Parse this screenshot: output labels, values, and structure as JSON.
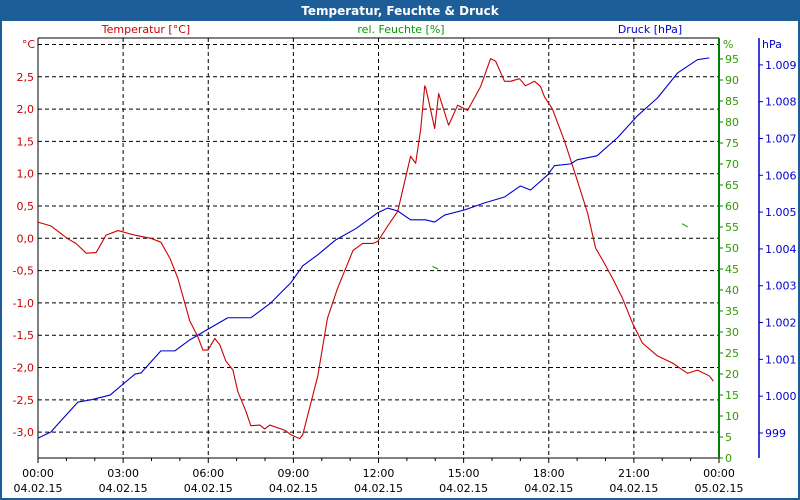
{
  "window": {
    "title": "Temperatur, Feuchte & Druck"
  },
  "colors": {
    "temperature": "#cc0000",
    "humidity": "#009900",
    "humidity_axis": "#008000",
    "pressure": "#0000cc",
    "titlebar": "#1d5e98"
  },
  "chart_data": {
    "type": "line",
    "title": "Temperatur, Feuchte & Druck",
    "xlabel": "",
    "x_unit": "hours since 00:00 04.02.15",
    "xlim": [
      0,
      24
    ],
    "x_ticks": [
      {
        "value": 0,
        "time": "00:00",
        "date": "04.02.15"
      },
      {
        "value": 3,
        "time": "03:00",
        "date": "04.02.15"
      },
      {
        "value": 6,
        "time": "06:00",
        "date": "04.02.15"
      },
      {
        "value": 9,
        "time": "09:00",
        "date": "04.02.15"
      },
      {
        "value": 12,
        "time": "12:00",
        "date": "04.02.15"
      },
      {
        "value": 15,
        "time": "15:00",
        "date": "04.02.15"
      },
      {
        "value": 18,
        "time": "18:00",
        "date": "04.02.15"
      },
      {
        "value": 21,
        "time": "21:00",
        "date": "04.02.15"
      },
      {
        "value": 24,
        "time": "00:00",
        "date": "05.02.15"
      }
    ],
    "grid": true,
    "axes": {
      "temperature": {
        "label": "Temperatur [°C]",
        "unit": "°C",
        "ylim": [
          -3.4,
          3.1
        ],
        "ticks": [
          {
            "v": 2.5,
            "t": "2,5"
          },
          {
            "v": 2,
            "t": "2,0"
          },
          {
            "v": 1.5,
            "t": "1,5"
          },
          {
            "v": 1,
            "t": "1,0"
          },
          {
            "v": 0.5,
            "t": "0,5"
          },
          {
            "v": 0,
            "t": "0,0"
          },
          {
            "v": -0.5,
            "t": "-0,5"
          },
          {
            "v": -1,
            "t": "-1,0"
          },
          {
            "v": -1.5,
            "t": "-1,5"
          },
          {
            "v": -2,
            "t": "-2,0"
          },
          {
            "v": -2.5,
            "t": "-2,5"
          },
          {
            "v": -3,
            "t": "-3,0"
          }
        ]
      },
      "humidity": {
        "label": "rel. Feuchte [%]",
        "unit": "%",
        "ylim": [
          0,
          100
        ],
        "ticks": [
          {
            "v": 0,
            "t": "0"
          },
          {
            "v": 5,
            "t": "5"
          },
          {
            "v": 10,
            "t": "10"
          },
          {
            "v": 15,
            "t": "15"
          },
          {
            "v": 20,
            "t": "20"
          },
          {
            "v": 25,
            "t": "25"
          },
          {
            "v": 30,
            "t": "30"
          },
          {
            "v": 35,
            "t": "35"
          },
          {
            "v": 40,
            "t": "40"
          },
          {
            "v": 45,
            "t": "45"
          },
          {
            "v": 50,
            "t": "50"
          },
          {
            "v": 55,
            "t": "55"
          },
          {
            "v": 60,
            "t": "60"
          },
          {
            "v": 65,
            "t": "65"
          },
          {
            "v": 70,
            "t": "70"
          },
          {
            "v": 75,
            "t": "75"
          },
          {
            "v": 80,
            "t": "80"
          },
          {
            "v": 85,
            "t": "85"
          },
          {
            "v": 90,
            "t": "90"
          },
          {
            "v": 95,
            "t": "95"
          }
        ]
      },
      "pressure": {
        "label": "Druck [hPa]",
        "unit": "hPa",
        "ylim": [
          998.32,
          1009.73
        ],
        "ticks": [
          {
            "v": 999,
            "t": "999"
          },
          {
            "v": 1000,
            "t": "1.000"
          },
          {
            "v": 1001,
            "t": "1.001"
          },
          {
            "v": 1002,
            "t": "1.002"
          },
          {
            "v": 1003,
            "t": "1.003"
          },
          {
            "v": 1004,
            "t": "1.004"
          },
          {
            "v": 1005,
            "t": "1.005"
          },
          {
            "v": 1006,
            "t": "1.006"
          },
          {
            "v": 1007,
            "t": "1.007"
          },
          {
            "v": 1008,
            "t": "1.008"
          },
          {
            "v": 1009,
            "t": "1.009"
          }
        ]
      }
    },
    "series": [
      {
        "name": "Temperatur [°C]",
        "axis": "temperature",
        "x": [
          0,
          0.46,
          1.06,
          1.34,
          1.7,
          2.05,
          2.4,
          2.82,
          3.4,
          3.98,
          4.33,
          4.65,
          4.93,
          5.35,
          5.63,
          5.81,
          5.99,
          6.23,
          6.41,
          6.62,
          6.87,
          7.04,
          7.33,
          7.5,
          7.82,
          7.99,
          8.17,
          8.7,
          8.91,
          9.22,
          9.33,
          9.86,
          10.2,
          10.56,
          11.1,
          11.44,
          11.8,
          11.97,
          12.43,
          12.68,
          13.13,
          13.31,
          13.49,
          13.63,
          13.67,
          13.98,
          14.12,
          14.47,
          14.79,
          15.14,
          15.6,
          15.95,
          16.13,
          16.44,
          16.65,
          16.97,
          17.18,
          17.5,
          17.71,
          17.85,
          18.13,
          18.56,
          18.98,
          19.37,
          19.65,
          19.9,
          20.25,
          20.6,
          20.95,
          21.3,
          21.83,
          22.36,
          22.89,
          23.24,
          23.66,
          23.8
        ],
        "y": [
          0.25,
          0.19,
          -0.01,
          -0.08,
          -0.23,
          -0.22,
          0.05,
          0.12,
          0.05,
          0.0,
          -0.06,
          -0.31,
          -0.62,
          -1.28,
          -1.52,
          -1.73,
          -1.73,
          -1.55,
          -1.65,
          -1.9,
          -2.04,
          -2.37,
          -2.68,
          -2.9,
          -2.89,
          -2.95,
          -2.89,
          -2.97,
          -3.04,
          -3.1,
          -3.04,
          -2.13,
          -1.24,
          -0.77,
          -0.19,
          -0.08,
          -0.08,
          -0.05,
          0.26,
          0.42,
          1.27,
          1.16,
          1.7,
          2.36,
          2.32,
          1.7,
          2.24,
          1.75,
          2.06,
          1.98,
          2.35,
          2.78,
          2.74,
          2.43,
          2.43,
          2.47,
          2.36,
          2.43,
          2.35,
          2.19,
          2.0,
          1.5,
          0.93,
          0.39,
          -0.15,
          -0.34,
          -0.62,
          -0.93,
          -1.31,
          -1.62,
          -1.82,
          -1.93,
          -2.09,
          -2.04,
          -2.13,
          -2.21
        ]
      },
      {
        "name": "rel. Feuchte [%]",
        "axis": "humidity",
        "segments": [
          [
            [
              13.9,
              45.6
            ],
            [
              14.1,
              45.0
            ]
          ],
          [
            [
              22.7,
              55.8
            ],
            [
              22.9,
              55.0
            ]
          ]
        ]
      },
      {
        "name": "Druck [hPa]",
        "axis": "pressure",
        "x": [
          0,
          0.46,
          0.7,
          1.41,
          1.87,
          2.54,
          3.42,
          3.63,
          4.33,
          4.82,
          5.35,
          5.88,
          6.69,
          7.5,
          8.2,
          8.91,
          9.33,
          9.86,
          10.5,
          11.2,
          11.97,
          12.32,
          12.68,
          13.13,
          13.66,
          13.98,
          14.33,
          15.04,
          15.74,
          16.44,
          17.0,
          17.36,
          17.96,
          18.2,
          18.77,
          19.0,
          19.7,
          20.42,
          21.13,
          21.83,
          22.54,
          23.24,
          23.66
        ],
        "y": [
          998.86,
          999.03,
          999.24,
          999.84,
          999.9,
          1000.03,
          1000.6,
          1000.63,
          1001.23,
          1001.23,
          1001.53,
          1001.77,
          1002.13,
          1002.13,
          1002.53,
          1003.08,
          1003.54,
          1003.84,
          1004.25,
          1004.55,
          1004.98,
          1005.11,
          1005.03,
          1004.79,
          1004.79,
          1004.73,
          1004.92,
          1005.06,
          1005.25,
          1005.41,
          1005.71,
          1005.6,
          1006.01,
          1006.26,
          1006.31,
          1006.42,
          1006.53,
          1007.02,
          1007.62,
          1008.1,
          1008.78,
          1009.14,
          1009.19
        ]
      }
    ]
  }
}
